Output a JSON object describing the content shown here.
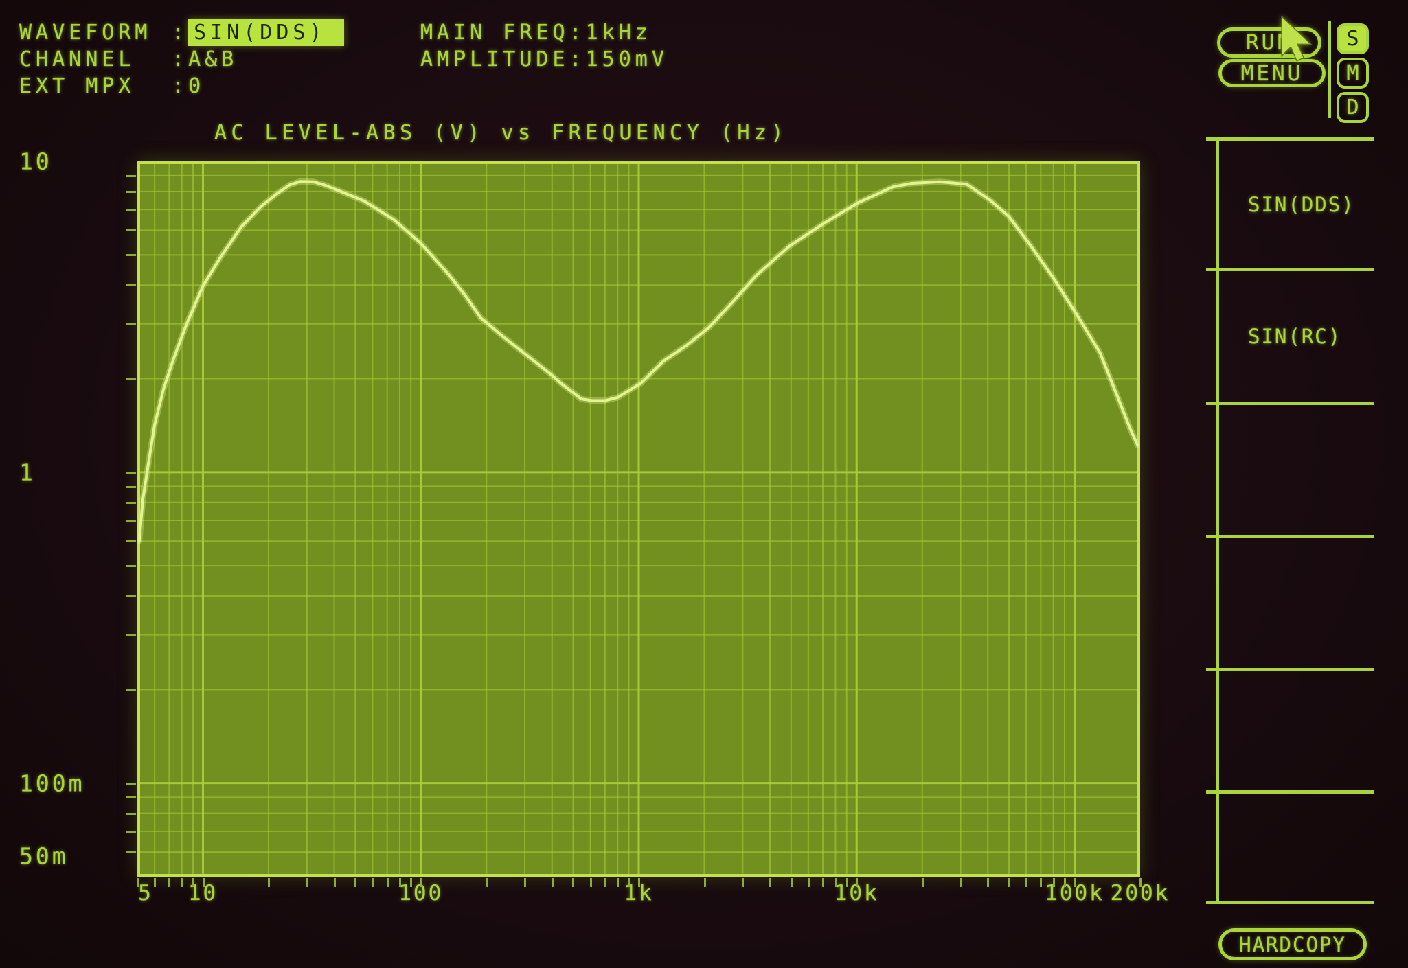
{
  "header": {
    "fields": [
      {
        "label": "WAVEFORM",
        "sep": ":",
        "value": "SIN(DDS)",
        "highlighted": true
      },
      {
        "label": "CHANNEL",
        "sep": ":",
        "value": "A&B",
        "highlighted": false
      },
      {
        "label": "EXT MPX",
        "sep": ":",
        "value": "0",
        "highlighted": false
      }
    ],
    "generator": [
      {
        "label": "MAIN FREQ",
        "sep": ":",
        "value": "1kHz"
      },
      {
        "label": "AMPLITUDE",
        "sep": ":",
        "value": "150mV"
      }
    ]
  },
  "controls": {
    "run_label": "RUN",
    "menu_label": "MENU",
    "hardcopy_label": "HARDCOPY",
    "status_badges": [
      {
        "label": "S",
        "active": true
      },
      {
        "label": "M",
        "active": false
      },
      {
        "label": "D",
        "active": false
      }
    ]
  },
  "softkeys": [
    {
      "label": "SIN(DDS)"
    },
    {
      "label": "SIN(RC)"
    },
    {
      "label": ""
    },
    {
      "label": ""
    },
    {
      "label": ""
    },
    {
      "label": ""
    }
  ],
  "chart_data": {
    "type": "line",
    "title": "AC LEVEL-ABS (V) vs FREQUENCY (Hz)",
    "grid": true,
    "x_axis": {
      "scale": "log",
      "unit": "Hz",
      "min": 5,
      "max": 200000,
      "tick_values": [
        5,
        10,
        100,
        1000,
        10000,
        100000,
        200000
      ],
      "tick_labels": [
        "5",
        "10",
        "100",
        "1k",
        "10k",
        "100k",
        "200k"
      ]
    },
    "y_axis": {
      "scale": "log",
      "unit": "V",
      "min": 0.05,
      "max": 10,
      "tick_values": [
        10,
        1,
        0.1,
        0.05
      ],
      "tick_labels": [
        "10",
        "1",
        "100m",
        "50m"
      ]
    },
    "series": [
      {
        "name": "AC LEVEL-ABS",
        "points": [
          [
            5.1,
            0.6
          ],
          [
            5.3,
            0.82
          ],
          [
            5.6,
            1.05
          ],
          [
            6.0,
            1.42
          ],
          [
            6.6,
            1.86
          ],
          [
            7.4,
            2.36
          ],
          [
            8.4,
            2.99
          ],
          [
            10,
            3.97
          ],
          [
            12,
            4.9
          ],
          [
            15,
            6.16
          ],
          [
            18.5,
            7.17
          ],
          [
            22,
            7.9
          ],
          [
            25,
            8.4
          ],
          [
            28,
            8.62
          ],
          [
            32,
            8.6
          ],
          [
            36,
            8.4
          ],
          [
            42,
            8.05
          ],
          [
            55,
            7.45
          ],
          [
            75,
            6.5
          ],
          [
            100,
            5.45
          ],
          [
            134,
            4.33
          ],
          [
            160,
            3.7
          ],
          [
            188,
            3.14
          ],
          [
            240,
            2.72
          ],
          [
            306,
            2.38
          ],
          [
            390,
            2.08
          ],
          [
            440,
            1.93
          ],
          [
            545,
            1.72
          ],
          [
            610,
            1.7
          ],
          [
            700,
            1.7
          ],
          [
            800,
            1.74
          ],
          [
            1020,
            1.93
          ],
          [
            1300,
            2.28
          ],
          [
            1660,
            2.56
          ],
          [
            2110,
            2.93
          ],
          [
            2700,
            3.53
          ],
          [
            3480,
            4.31
          ],
          [
            4920,
            5.34
          ],
          [
            7080,
            6.32
          ],
          [
            10200,
            7.37
          ],
          [
            14700,
            8.28
          ],
          [
            18000,
            8.5
          ],
          [
            24000,
            8.6
          ],
          [
            32000,
            8.44
          ],
          [
            41000,
            7.5
          ],
          [
            50000,
            6.64
          ],
          [
            63000,
            5.35
          ],
          [
            80000,
            4.21
          ],
          [
            103000,
            3.19
          ],
          [
            131000,
            2.42
          ],
          [
            160000,
            1.7
          ],
          [
            180000,
            1.38
          ],
          [
            195000,
            1.22
          ]
        ]
      }
    ]
  },
  "colors": {
    "background": "#180b0f",
    "text_green": "#a9d53a",
    "highlight_bg": "#b8e33e",
    "highlight_fg": "#1f2806",
    "plot_bg": "#71901f",
    "grid_line": "#aecf3a",
    "plot_border": "#c3e14e",
    "curve": "#e2f490",
    "tick": "#8db02c"
  }
}
